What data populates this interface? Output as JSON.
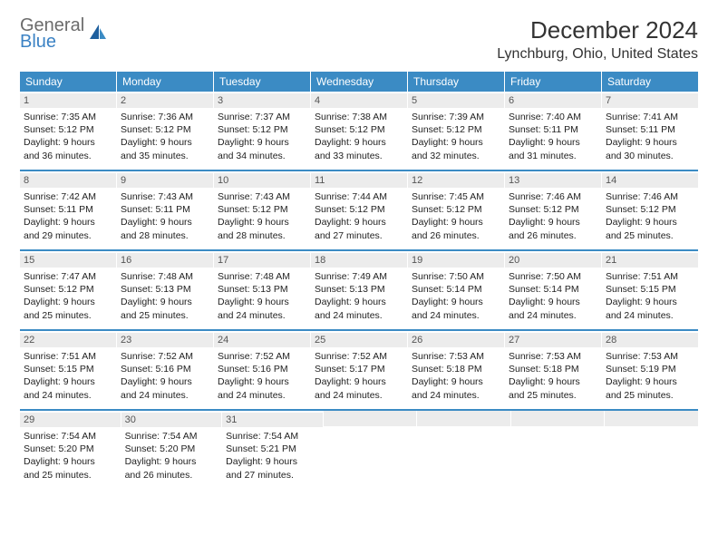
{
  "logo": {
    "general": "General",
    "blue": "Blue"
  },
  "title": "December 2024",
  "location": "Lynchburg, Ohio, United States",
  "colors": {
    "header_bg": "#3b8bc4",
    "header_text": "#ffffff",
    "daynum_bg": "#ececec",
    "border": "#3b8bc4",
    "logo_gray": "#6b6b6b",
    "logo_blue": "#3b82c4"
  },
  "weekdays": [
    "Sunday",
    "Monday",
    "Tuesday",
    "Wednesday",
    "Thursday",
    "Friday",
    "Saturday"
  ],
  "weeks": [
    [
      {
        "n": "1",
        "sr": "Sunrise: 7:35 AM",
        "ss": "Sunset: 5:12 PM",
        "d1": "Daylight: 9 hours",
        "d2": "and 36 minutes."
      },
      {
        "n": "2",
        "sr": "Sunrise: 7:36 AM",
        "ss": "Sunset: 5:12 PM",
        "d1": "Daylight: 9 hours",
        "d2": "and 35 minutes."
      },
      {
        "n": "3",
        "sr": "Sunrise: 7:37 AM",
        "ss": "Sunset: 5:12 PM",
        "d1": "Daylight: 9 hours",
        "d2": "and 34 minutes."
      },
      {
        "n": "4",
        "sr": "Sunrise: 7:38 AM",
        "ss": "Sunset: 5:12 PM",
        "d1": "Daylight: 9 hours",
        "d2": "and 33 minutes."
      },
      {
        "n": "5",
        "sr": "Sunrise: 7:39 AM",
        "ss": "Sunset: 5:12 PM",
        "d1": "Daylight: 9 hours",
        "d2": "and 32 minutes."
      },
      {
        "n": "6",
        "sr": "Sunrise: 7:40 AM",
        "ss": "Sunset: 5:11 PM",
        "d1": "Daylight: 9 hours",
        "d2": "and 31 minutes."
      },
      {
        "n": "7",
        "sr": "Sunrise: 7:41 AM",
        "ss": "Sunset: 5:11 PM",
        "d1": "Daylight: 9 hours",
        "d2": "and 30 minutes."
      }
    ],
    [
      {
        "n": "8",
        "sr": "Sunrise: 7:42 AM",
        "ss": "Sunset: 5:11 PM",
        "d1": "Daylight: 9 hours",
        "d2": "and 29 minutes."
      },
      {
        "n": "9",
        "sr": "Sunrise: 7:43 AM",
        "ss": "Sunset: 5:11 PM",
        "d1": "Daylight: 9 hours",
        "d2": "and 28 minutes."
      },
      {
        "n": "10",
        "sr": "Sunrise: 7:43 AM",
        "ss": "Sunset: 5:12 PM",
        "d1": "Daylight: 9 hours",
        "d2": "and 28 minutes."
      },
      {
        "n": "11",
        "sr": "Sunrise: 7:44 AM",
        "ss": "Sunset: 5:12 PM",
        "d1": "Daylight: 9 hours",
        "d2": "and 27 minutes."
      },
      {
        "n": "12",
        "sr": "Sunrise: 7:45 AM",
        "ss": "Sunset: 5:12 PM",
        "d1": "Daylight: 9 hours",
        "d2": "and 26 minutes."
      },
      {
        "n": "13",
        "sr": "Sunrise: 7:46 AM",
        "ss": "Sunset: 5:12 PM",
        "d1": "Daylight: 9 hours",
        "d2": "and 26 minutes."
      },
      {
        "n": "14",
        "sr": "Sunrise: 7:46 AM",
        "ss": "Sunset: 5:12 PM",
        "d1": "Daylight: 9 hours",
        "d2": "and 25 minutes."
      }
    ],
    [
      {
        "n": "15",
        "sr": "Sunrise: 7:47 AM",
        "ss": "Sunset: 5:12 PM",
        "d1": "Daylight: 9 hours",
        "d2": "and 25 minutes."
      },
      {
        "n": "16",
        "sr": "Sunrise: 7:48 AM",
        "ss": "Sunset: 5:13 PM",
        "d1": "Daylight: 9 hours",
        "d2": "and 25 minutes."
      },
      {
        "n": "17",
        "sr": "Sunrise: 7:48 AM",
        "ss": "Sunset: 5:13 PM",
        "d1": "Daylight: 9 hours",
        "d2": "and 24 minutes."
      },
      {
        "n": "18",
        "sr": "Sunrise: 7:49 AM",
        "ss": "Sunset: 5:13 PM",
        "d1": "Daylight: 9 hours",
        "d2": "and 24 minutes."
      },
      {
        "n": "19",
        "sr": "Sunrise: 7:50 AM",
        "ss": "Sunset: 5:14 PM",
        "d1": "Daylight: 9 hours",
        "d2": "and 24 minutes."
      },
      {
        "n": "20",
        "sr": "Sunrise: 7:50 AM",
        "ss": "Sunset: 5:14 PM",
        "d1": "Daylight: 9 hours",
        "d2": "and 24 minutes."
      },
      {
        "n": "21",
        "sr": "Sunrise: 7:51 AM",
        "ss": "Sunset: 5:15 PM",
        "d1": "Daylight: 9 hours",
        "d2": "and 24 minutes."
      }
    ],
    [
      {
        "n": "22",
        "sr": "Sunrise: 7:51 AM",
        "ss": "Sunset: 5:15 PM",
        "d1": "Daylight: 9 hours",
        "d2": "and 24 minutes."
      },
      {
        "n": "23",
        "sr": "Sunrise: 7:52 AM",
        "ss": "Sunset: 5:16 PM",
        "d1": "Daylight: 9 hours",
        "d2": "and 24 minutes."
      },
      {
        "n": "24",
        "sr": "Sunrise: 7:52 AM",
        "ss": "Sunset: 5:16 PM",
        "d1": "Daylight: 9 hours",
        "d2": "and 24 minutes."
      },
      {
        "n": "25",
        "sr": "Sunrise: 7:52 AM",
        "ss": "Sunset: 5:17 PM",
        "d1": "Daylight: 9 hours",
        "d2": "and 24 minutes."
      },
      {
        "n": "26",
        "sr": "Sunrise: 7:53 AM",
        "ss": "Sunset: 5:18 PM",
        "d1": "Daylight: 9 hours",
        "d2": "and 24 minutes."
      },
      {
        "n": "27",
        "sr": "Sunrise: 7:53 AM",
        "ss": "Sunset: 5:18 PM",
        "d1": "Daylight: 9 hours",
        "d2": "and 25 minutes."
      },
      {
        "n": "28",
        "sr": "Sunrise: 7:53 AM",
        "ss": "Sunset: 5:19 PM",
        "d1": "Daylight: 9 hours",
        "d2": "and 25 minutes."
      }
    ],
    [
      {
        "n": "29",
        "sr": "Sunrise: 7:54 AM",
        "ss": "Sunset: 5:20 PM",
        "d1": "Daylight: 9 hours",
        "d2": "and 25 minutes."
      },
      {
        "n": "30",
        "sr": "Sunrise: 7:54 AM",
        "ss": "Sunset: 5:20 PM",
        "d1": "Daylight: 9 hours",
        "d2": "and 26 minutes."
      },
      {
        "n": "31",
        "sr": "Sunrise: 7:54 AM",
        "ss": "Sunset: 5:21 PM",
        "d1": "Daylight: 9 hours",
        "d2": "and 27 minutes."
      },
      null,
      null,
      null,
      null
    ]
  ]
}
